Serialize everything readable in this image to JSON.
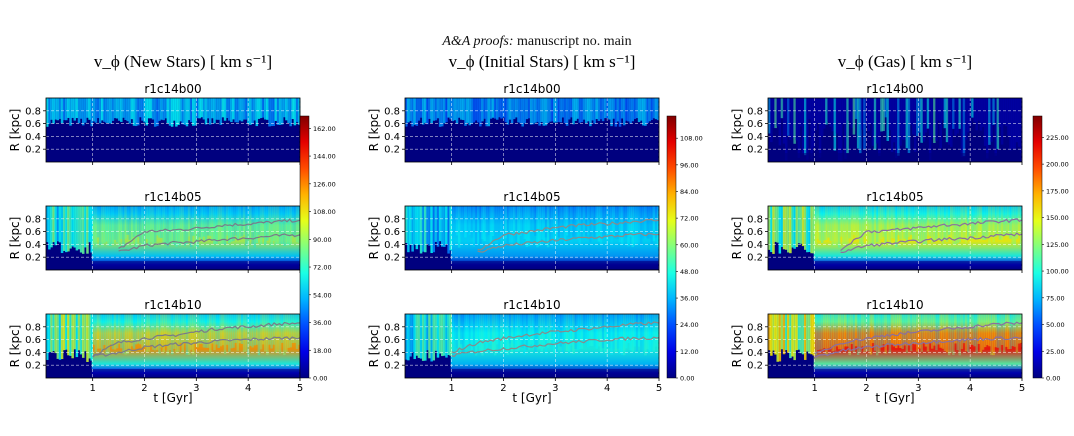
{
  "header": {
    "journal": "A&A proofs:",
    "manuscript": "manuscript no. main"
  },
  "colors": {
    "base": "#00007f",
    "line_new": "#7a7a8a",
    "line_init": "#8a8a8a",
    "line_gas": "#8a6fa0",
    "grid": "#ffffff"
  },
  "chart_data": [
    {
      "type": "heatmap",
      "title": "v_ϕ (New Stars) [ km s⁻¹]",
      "xlabel": "t [Gyr]",
      "ylabel": "R [kpc]",
      "xlim": [
        0.1,
        5
      ],
      "ylim": [
        0,
        1
      ],
      "xticks": [
        1,
        2,
        3,
        4,
        5
      ],
      "yticks": [
        0.2,
        0.4,
        0.6,
        0.8
      ],
      "grid": true,
      "colormap": "jet",
      "colorbar": {
        "min": 0,
        "max": 170,
        "ticks": [
          "0.00",
          "18.00",
          "36.00",
          "54.00",
          "72.00",
          "90.00",
          "108.00",
          "126.00",
          "144.00",
          "162.00"
        ]
      },
      "panels": [
        {
          "label": "r1c14b00",
          "field_level": 0.35,
          "inner_level": 0.05,
          "band_level": 0.3,
          "has_lines": false
        },
        {
          "label": "r1c14b05",
          "field_level": 0.42,
          "inner_level": 0.08,
          "band_level": 0.55,
          "has_lines": true,
          "line_t": [
            1.5,
            2.0,
            2.5,
            3.0,
            3.5,
            4.0,
            4.5,
            5.0
          ],
          "line_upper": [
            0.32,
            0.6,
            0.62,
            0.65,
            0.7,
            0.72,
            0.75,
            0.78
          ],
          "line_lower": [
            0.28,
            0.38,
            0.42,
            0.44,
            0.48,
            0.5,
            0.53,
            0.55
          ]
        },
        {
          "label": "r1c14b10",
          "field_level": 0.5,
          "inner_level": 0.12,
          "band_level": 0.72,
          "has_lines": true,
          "line_t": [
            1.0,
            1.5,
            2.0,
            2.5,
            3.0,
            3.5,
            4.0,
            4.5,
            5.0
          ],
          "line_upper": [
            0.35,
            0.55,
            0.62,
            0.66,
            0.72,
            0.78,
            0.8,
            0.84,
            0.86
          ],
          "line_lower": [
            0.33,
            0.4,
            0.48,
            0.52,
            0.55,
            0.58,
            0.6,
            0.62,
            0.63
          ]
        }
      ]
    },
    {
      "type": "heatmap",
      "title": "v_ϕ (Initial Stars) [ km s⁻¹]",
      "xlabel": "t [Gyr]",
      "ylabel": "R [kpc]",
      "xlim": [
        0.1,
        5
      ],
      "ylim": [
        0,
        1
      ],
      "xticks": [
        1,
        2,
        3,
        4,
        5
      ],
      "yticks": [
        0.2,
        0.4,
        0.6,
        0.8
      ],
      "grid": true,
      "colormap": "jet",
      "colorbar": {
        "min": 0,
        "max": 118,
        "ticks": [
          "0.00",
          "12.00",
          "24.00",
          "36.00",
          "48.00",
          "60.00",
          "72.00",
          "84.00",
          "96.00",
          "108.00"
        ]
      },
      "panels": [
        {
          "label": "r1c14b00",
          "field_level": 0.3,
          "inner_level": 0.04,
          "band_level": 0.3,
          "has_lines": false
        },
        {
          "label": "r1c14b05",
          "field_level": 0.36,
          "inner_level": 0.05,
          "band_level": 0.35,
          "has_lines": true,
          "line_t": [
            1.5,
            2.0,
            2.5,
            3.0,
            3.5,
            4.0,
            4.5,
            5.0
          ],
          "line_upper": [
            0.3,
            0.55,
            0.6,
            0.66,
            0.7,
            0.72,
            0.76,
            0.78
          ],
          "line_lower": [
            0.28,
            0.38,
            0.42,
            0.46,
            0.5,
            0.52,
            0.55,
            0.56
          ]
        },
        {
          "label": "r1c14b10",
          "field_level": 0.4,
          "inner_level": 0.06,
          "band_level": 0.4,
          "has_lines": true,
          "line_t": [
            1.0,
            1.5,
            2.0,
            2.5,
            3.0,
            3.5,
            4.0,
            4.5,
            5.0
          ],
          "line_upper": [
            0.4,
            0.55,
            0.62,
            0.68,
            0.72,
            0.76,
            0.8,
            0.84,
            0.86
          ],
          "line_lower": [
            0.35,
            0.42,
            0.46,
            0.5,
            0.54,
            0.57,
            0.6,
            0.62,
            0.63
          ]
        }
      ]
    },
    {
      "type": "heatmap",
      "title": "v_ϕ (Gas) [ km s⁻¹]",
      "xlabel": "t [Gyr]",
      "ylabel": "R [kpc]",
      "xlim": [
        0.1,
        5
      ],
      "ylim": [
        0,
        1
      ],
      "xticks": [
        1,
        2,
        3,
        4,
        5
      ],
      "yticks": [
        0.2,
        0.4,
        0.6,
        0.8
      ],
      "grid": true,
      "colormap": "jet",
      "colorbar": {
        "min": 0,
        "max": 245,
        "ticks": [
          "0.00",
          "25.00",
          "50.00",
          "75.00",
          "100.00",
          "125.00",
          "150.00",
          "175.00",
          "200.00",
          "225.00"
        ]
      },
      "panels": [
        {
          "label": "r1c14b00",
          "field_level": 0.22,
          "inner_level": 0.03,
          "band_level": 0.2,
          "has_lines": false
        },
        {
          "label": "r1c14b05",
          "field_level": 0.5,
          "inner_level": 0.1,
          "band_level": 0.62,
          "has_lines": true,
          "line_t": [
            1.5,
            2.0,
            2.5,
            3.0,
            3.5,
            4.0,
            4.5,
            5.0
          ],
          "line_upper": [
            0.32,
            0.6,
            0.62,
            0.66,
            0.7,
            0.72,
            0.76,
            0.78
          ],
          "line_lower": [
            0.28,
            0.38,
            0.42,
            0.45,
            0.48,
            0.5,
            0.54,
            0.56
          ]
        },
        {
          "label": "r1c14b10",
          "field_level": 0.58,
          "inner_level": 0.12,
          "band_level": 0.85,
          "has_lines": true,
          "line_t": [
            1.0,
            1.5,
            2.0,
            2.5,
            3.0,
            3.5,
            4.0,
            4.5,
            5.0
          ],
          "line_upper": [
            0.36,
            0.55,
            0.62,
            0.68,
            0.72,
            0.76,
            0.8,
            0.84,
            0.86
          ],
          "line_lower": [
            0.33,
            0.42,
            0.48,
            0.52,
            0.55,
            0.58,
            0.6,
            0.62,
            0.63
          ]
        }
      ]
    }
  ]
}
